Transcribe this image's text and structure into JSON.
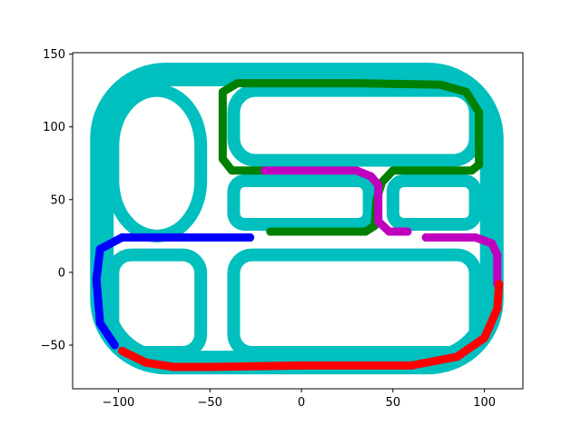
{
  "chart_data": {
    "type": "scatter",
    "title": "",
    "xlabel": "",
    "ylabel": "",
    "xlim": [
      -125,
      121
    ],
    "ylim": [
      -80,
      151
    ],
    "xticks": [
      -100,
      -50,
      0,
      50,
      100
    ],
    "yticks": [
      -50,
      0,
      50,
      100,
      150
    ],
    "xtick_labels": [
      "−100",
      "−50",
      "0",
      "50",
      "100"
    ],
    "ytick_labels": [
      "−50",
      "0",
      "50",
      "100",
      "150"
    ],
    "grid": false,
    "legend": "none",
    "road_network": {
      "color": "#00bfbf",
      "marker": "dense circles forming a road map",
      "blocks": [
        {
          "name": "outer-loop",
          "x0": -109,
          "y0": -62,
          "x1": 104,
          "y1": 136,
          "r": 35
        },
        {
          "name": "block-top-left",
          "x0": -103,
          "y0": 25,
          "x1": -55,
          "y1": 125,
          "r": 30
        },
        {
          "name": "block-top-right",
          "x0": -37,
          "y0": 77,
          "x1": 95,
          "y1": 125,
          "r": 12
        },
        {
          "name": "block-mid-left",
          "x0": -37,
          "y0": 33,
          "x1": 37,
          "y1": 63,
          "r": 6
        },
        {
          "name": "block-mid-right",
          "x0": 50,
          "y0": 33,
          "x1": 95,
          "y1": 63,
          "r": 6
        },
        {
          "name": "block-bottom-left",
          "x0": -103,
          "y0": -55,
          "x1": -55,
          "y1": 12,
          "r": 10
        },
        {
          "name": "block-bottom-right",
          "x0": -37,
          "y0": -55,
          "x1": 95,
          "y1": 12,
          "r": 10
        }
      ]
    },
    "series": [
      {
        "color": "#008000",
        "points": [
          [
            -17,
            28
          ],
          [
            35,
            28
          ],
          [
            40,
            32
          ],
          [
            41,
            50
          ],
          [
            44,
            62
          ],
          [
            50,
            70
          ],
          [
            93,
            70
          ],
          [
            97,
            74
          ],
          [
            97,
            110
          ],
          [
            90,
            124
          ],
          [
            76,
            129
          ],
          [
            30,
            130
          ],
          [
            -35,
            130
          ],
          [
            -43,
            124
          ],
          [
            -43,
            78
          ],
          [
            -38,
            70
          ],
          [
            -20,
            70
          ]
        ]
      },
      {
        "color": "#bf00bf",
        "points": [
          [
            -20,
            70
          ],
          [
            30,
            70
          ],
          [
            38,
            66
          ],
          [
            42,
            60
          ],
          [
            42,
            35
          ],
          [
            48,
            28
          ],
          [
            58,
            28
          ]
        ]
      },
      {
        "color": "#bf00bf",
        "points": [
          [
            68,
            24
          ],
          [
            95,
            24
          ],
          [
            104,
            20
          ],
          [
            107,
            12
          ],
          [
            107,
            -8
          ]
        ]
      },
      {
        "color": "#0000ff",
        "points": [
          [
            -28,
            24
          ],
          [
            -98,
            24
          ],
          [
            -110,
            16
          ],
          [
            -112,
            -5
          ],
          [
            -110,
            -35
          ],
          [
            -102,
            -50
          ]
        ]
      },
      {
        "color": "#ff0000",
        "points": [
          [
            -98,
            -54
          ],
          [
            -85,
            -62
          ],
          [
            -70,
            -65
          ],
          [
            -50,
            -65
          ],
          [
            0,
            -64
          ],
          [
            60,
            -64
          ],
          [
            85,
            -58
          ],
          [
            100,
            -45
          ],
          [
            107,
            -25
          ],
          [
            108,
            -8
          ]
        ]
      }
    ]
  }
}
